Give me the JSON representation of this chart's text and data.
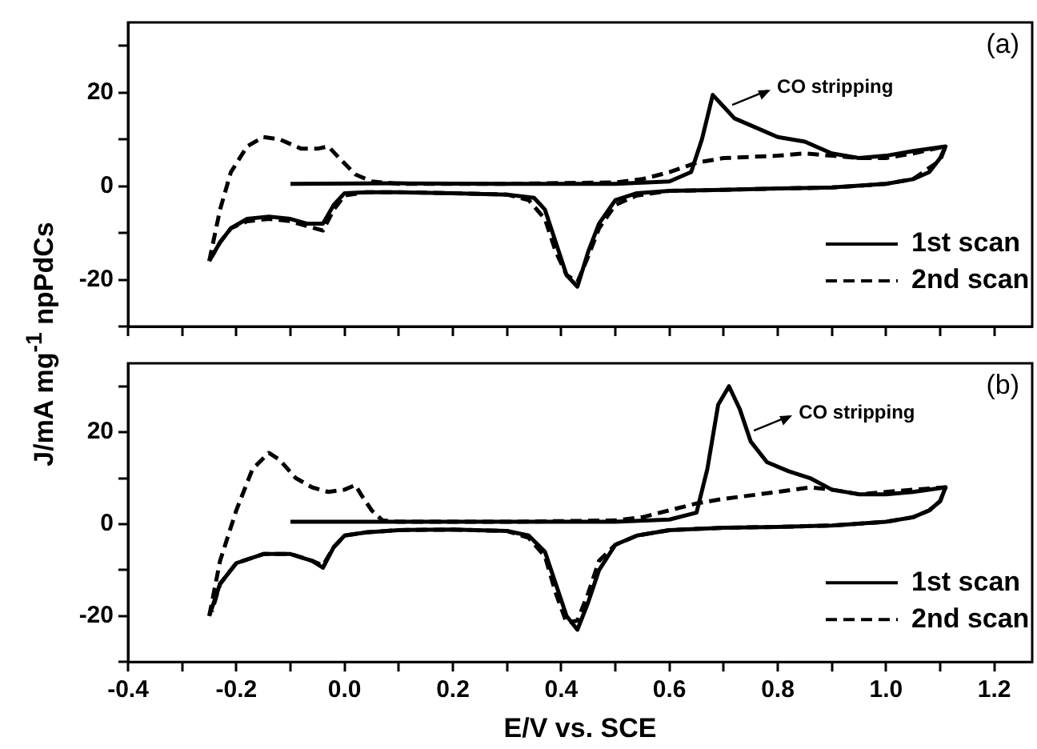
{
  "chart_data": [
    {
      "type": "line",
      "ylabel": "J/mA mg$^{-1}$ npPdCs",
      "xlim": [
        -0.4,
        1.27
      ],
      "ylim": [
        -30,
        35
      ],
      "xticks": [
        {
          "value": -0.4,
          "label": null
        },
        {
          "value": -0.3,
          "label": null
        },
        {
          "value": -0.2,
          "label": null
        },
        {
          "value": -0.1,
          "label": null
        },
        {
          "value": 0,
          "label": null
        },
        {
          "value": 0.1,
          "label": null
        },
        {
          "value": 0.2,
          "label": null
        },
        {
          "value": 0.3,
          "label": null
        },
        {
          "value": 0.4,
          "label": null
        },
        {
          "value": 0.5,
          "label": null
        },
        {
          "value": 0.6,
          "label": null
        },
        {
          "value": 0.7,
          "label": null
        },
        {
          "value": 0.8,
          "label": null
        },
        {
          "value": 0.9,
          "label": null
        },
        {
          "value": 1,
          "label": null
        },
        {
          "value": 1.1,
          "label": null
        },
        {
          "value": 1.2,
          "label": null
        }
      ],
      "yticks": [
        {
          "value": -30,
          "label": null
        },
        -20,
        {
          "value": -10,
          "label": null
        },
        0,
        {
          "value": 10,
          "label": null
        },
        20,
        {
          "value": 30,
          "label": null
        }
      ],
      "tick_labels": "y",
      "grid": false,
      "legend": "bottom right",
      "annotations": [
        "(a)",
        {
          "text": "CO stripping",
          "x": 0.71,
          "y": 17
        }
      ],
      "series": [
        {
          "name": "1st scan",
          "color": "#000000",
          "line_style": "solid",
          "x": [
            -0.1,
            0.1,
            0.3,
            0.5,
            0.6,
            0.64,
            0.66,
            0.68,
            0.7,
            0.72,
            0.75,
            0.8,
            0.85,
            0.9,
            0.95,
            1.0,
            1.05,
            1.11,
            1.1,
            1.08,
            1.05,
            1.0,
            0.9,
            0.8,
            0.7,
            0.6,
            0.54,
            0.5,
            0.47,
            0.45,
            0.43,
            0.41,
            0.39,
            0.37,
            0.35,
            0.3,
            0.2,
            0.1,
            0.04,
            0.0,
            -0.02,
            -0.04,
            -0.07,
            -0.1,
            -0.14,
            -0.18,
            -0.21,
            -0.23,
            -0.25
          ],
          "values": [
            0.5,
            0.6,
            0.5,
            0.5,
            1,
            3,
            10,
            19.5,
            17,
            14.5,
            13,
            10.5,
            9.5,
            7,
            6,
            6.5,
            7.5,
            8.5,
            6,
            3,
            1.5,
            0.5,
            -0.3,
            -0.5,
            -0.8,
            -1,
            -1.5,
            -3,
            -8,
            -14,
            -21.5,
            -19,
            -12,
            -5,
            -2.5,
            -1.8,
            -1.5,
            -1.3,
            -1.3,
            -1.5,
            -4,
            -8,
            -8,
            -7,
            -6.5,
            -7,
            -9,
            -12,
            -16
          ]
        },
        {
          "name": "2nd scan",
          "color": "#000000",
          "line_style": "dashed",
          "x": [
            -0.25,
            -0.23,
            -0.21,
            -0.18,
            -0.15,
            -0.12,
            -0.08,
            -0.05,
            -0.03,
            -0.01,
            0.02,
            0.05,
            0.1,
            0.3,
            0.5,
            0.55,
            0.6,
            0.65,
            0.7,
            0.8,
            0.85,
            0.9,
            0.95,
            1.0,
            1.05,
            1.11,
            1.1,
            1.05,
            1.0,
            0.9,
            0.8,
            0.7,
            0.6,
            0.54,
            0.5,
            0.47,
            0.45,
            0.43,
            0.41,
            0.39,
            0.37,
            0.34,
            0.3,
            0.2,
            0.1,
            0.04,
            0.0,
            -0.02,
            -0.04,
            -0.07,
            -0.1,
            -0.14,
            -0.18,
            -0.21,
            -0.23,
            -0.245
          ],
          "values": [
            -16,
            -5,
            3,
            8.5,
            10.5,
            10,
            8,
            8,
            8.5,
            6,
            2.5,
            1,
            0.5,
            0.5,
            0.8,
            1.5,
            3,
            5,
            6,
            6.5,
            7,
            6.5,
            6,
            6,
            7,
            8.5,
            5.5,
            1.5,
            0.5,
            -0.3,
            -0.5,
            -0.8,
            -1,
            -2,
            -4,
            -9,
            -15,
            -20.5,
            -19,
            -14,
            -7,
            -3,
            -1.8,
            -1.5,
            -1.3,
            -1.3,
            -2,
            -5,
            -9.5,
            -8.5,
            -7.5,
            -7,
            -7.5,
            -9,
            -12,
            -15
          ]
        }
      ]
    },
    {
      "type": "line",
      "xlabel": "E/V vs. SCE",
      "xlim": [
        -0.4,
        1.27
      ],
      "ylim": [
        -30,
        35
      ],
      "xticks": [
        -0.4,
        {
          "value": -0.3,
          "label": null
        },
        -0.2,
        {
          "value": -0.1,
          "label": null
        },
        {
          "value": 0,
          "label": "0.0"
        },
        {
          "value": 0.1,
          "label": null
        },
        0.2,
        {
          "value": 0.3,
          "label": null
        },
        0.4,
        {
          "value": 0.5,
          "label": null
        },
        0.6,
        {
          "value": 0.7,
          "label": null
        },
        0.8,
        {
          "value": 0.9,
          "label": null
        },
        {
          "value": 1,
          "label": "1.0"
        },
        {
          "value": 1.1,
          "label": null
        },
        1.2
      ],
      "yticks": [
        {
          "value": -30,
          "label": null
        },
        -20,
        {
          "value": -10,
          "label": null
        },
        0,
        {
          "value": 10,
          "label": null
        },
        20,
        {
          "value": 30,
          "label": null
        }
      ],
      "grid": false,
      "legend": "bottom right",
      "annotations": [
        "(b)",
        {
          "text": "CO stripping",
          "x": 0.75,
          "y": 20
        }
      ],
      "series": [
        {
          "name": "1st scan",
          "color": "#000000",
          "line_style": "solid",
          "x": [
            -0.1,
            0.1,
            0.3,
            0.5,
            0.6,
            0.65,
            0.67,
            0.69,
            0.71,
            0.73,
            0.75,
            0.78,
            0.82,
            0.86,
            0.9,
            0.95,
            1.0,
            1.05,
            1.11,
            1.1,
            1.08,
            1.05,
            1.0,
            0.9,
            0.8,
            0.7,
            0.6,
            0.54,
            0.5,
            0.47,
            0.45,
            0.43,
            0.41,
            0.39,
            0.37,
            0.34,
            0.3,
            0.2,
            0.1,
            0.04,
            0.0,
            -0.02,
            -0.04,
            -0.06,
            -0.1,
            -0.15,
            -0.2,
            -0.23,
            -0.25
          ],
          "values": [
            0.5,
            0.5,
            0.5,
            0.5,
            1,
            2.5,
            12,
            26,
            30,
            25,
            18,
            13.5,
            11.5,
            10,
            7.5,
            6.5,
            6.5,
            7,
            8,
            5,
            3,
            1.5,
            0.5,
            -0.3,
            -0.6,
            -0.8,
            -1.3,
            -2.5,
            -4.5,
            -10,
            -17,
            -23,
            -20,
            -13,
            -6,
            -2.5,
            -1.5,
            -1.2,
            -1.3,
            -1.8,
            -2.5,
            -5,
            -9.5,
            -8,
            -6.5,
            -6.5,
            -8.5,
            -13,
            -20
          ]
        },
        {
          "name": "2nd scan",
          "color": "#000000",
          "line_style": "dashed",
          "x": [
            -0.25,
            -0.23,
            -0.2,
            -0.17,
            -0.14,
            -0.12,
            -0.09,
            -0.06,
            -0.03,
            0.0,
            0.02,
            0.03,
            0.05,
            0.07,
            0.1,
            0.3,
            0.5,
            0.55,
            0.6,
            0.65,
            0.7,
            0.8,
            0.86,
            0.9,
            0.95,
            1.0,
            1.05,
            1.11,
            1.1,
            1.08,
            1.05,
            1.0,
            0.9,
            0.8,
            0.7,
            0.6,
            0.54,
            0.5,
            0.47,
            0.45,
            0.43,
            0.41,
            0.39,
            0.37,
            0.34,
            0.3,
            0.2,
            0.1,
            0.04,
            0.0,
            -0.02,
            -0.04,
            -0.06,
            -0.1,
            -0.15,
            -0.2,
            -0.23,
            -0.245
          ],
          "values": [
            -20,
            -8,
            3,
            12,
            15.5,
            14,
            10,
            8,
            7,
            7.5,
            8.5,
            6.5,
            3,
            0.8,
            0.5,
            0.5,
            0.8,
            1.5,
            3,
            4.5,
            5.5,
            7,
            8,
            7.5,
            6.5,
            7,
            7.5,
            8,
            5,
            3,
            1.5,
            0.5,
            -0.3,
            -0.6,
            -0.8,
            -1.3,
            -2.5,
            -4.5,
            -8,
            -15,
            -21,
            -21.5,
            -15,
            -7,
            -3,
            -1.5,
            -1.2,
            -1.3,
            -1.8,
            -2.5,
            -5,
            -9,
            -8,
            -6.5,
            -6.5,
            -8.5,
            -13,
            -19
          ]
        }
      ]
    }
  ]
}
